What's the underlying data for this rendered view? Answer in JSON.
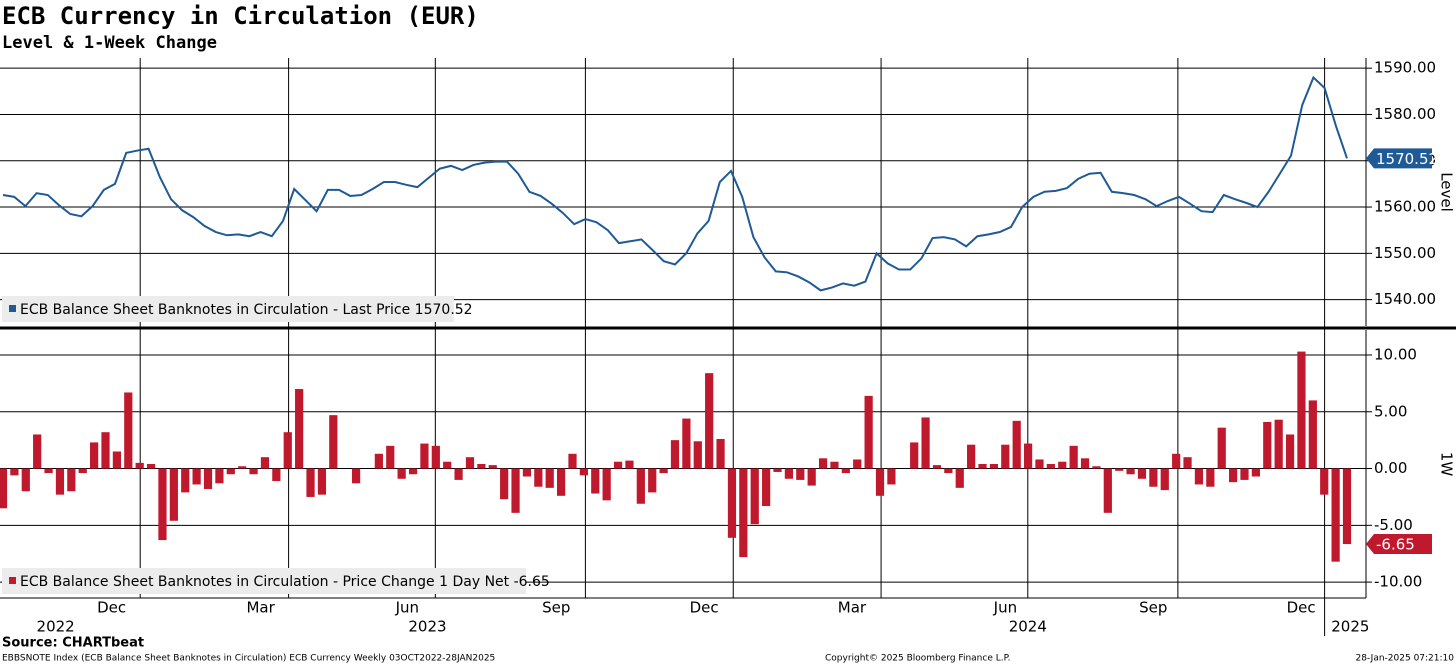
{
  "title": "ECB Currency in Circulation (EUR)",
  "subtitle": "Level & 1-Week Change",
  "chart_data": [
    {
      "type": "line",
      "axis_label": "Level",
      "color": "#1f5a96",
      "legend": "ECB Balance Sheet Banknotes in Circulation - Last Price 1570.52",
      "values": [
        1562.6,
        1562.2,
        1560.2,
        1563.0,
        1562.6,
        1560.4,
        1558.5,
        1558.0,
        1560.2,
        1563.7,
        1565.0,
        1571.7,
        1572.2,
        1572.6,
        1566.5,
        1561.7,
        1559.3,
        1557.8,
        1555.9,
        1554.6,
        1553.9,
        1554.1,
        1553.7,
        1554.6,
        1553.7,
        1557.0,
        1563.9,
        1561.5,
        1559.1,
        1563.7,
        1563.7,
        1562.4,
        1562.6,
        1563.9,
        1565.4,
        1565.4,
        1564.8,
        1564.3,
        1566.3,
        1568.3,
        1568.9,
        1568.0,
        1569.1,
        1569.6,
        1569.8,
        1569.8,
        1567.2,
        1563.3,
        1562.4,
        1560.7,
        1558.7,
        1556.3,
        1557.4,
        1556.7,
        1555.0,
        1552.2,
        1552.6,
        1553.0,
        1550.7,
        1548.3,
        1547.6,
        1550.0,
        1554.3,
        1557.0,
        1565.4,
        1567.8,
        1562.2,
        1553.5,
        1549.1,
        1546.1,
        1545.9,
        1545.0,
        1543.7,
        1542.0,
        1542.6,
        1543.5,
        1543.0,
        1543.9,
        1550.0,
        1547.8,
        1546.5,
        1546.5,
        1548.9,
        1553.3,
        1553.5,
        1553.0,
        1551.5,
        1553.7,
        1554.1,
        1554.6,
        1555.7,
        1560.0,
        1562.2,
        1563.3,
        1563.5,
        1564.1,
        1566.1,
        1567.2,
        1567.4,
        1563.3,
        1563.0,
        1562.6,
        1561.7,
        1560.2,
        1561.3,
        1562.2,
        1560.7,
        1559.1,
        1558.9,
        1562.6,
        1561.7,
        1560.9,
        1560.0,
        1563.3,
        1567.2,
        1571.1,
        1582.0,
        1588.0,
        1585.7,
        1577.6,
        1570.52
      ],
      "ylim": [
        1534.3,
        1592.2
      ],
      "yticks": [
        {
          "value": 1540,
          "label": "1540.00"
        },
        {
          "value": 1550,
          "label": "1550.00"
        },
        {
          "value": 1560,
          "label": "1560.00"
        },
        {
          "value": 1570,
          "label": "1570.00"
        },
        {
          "value": 1580,
          "label": "1580.00"
        },
        {
          "value": 1590,
          "label": "1590.00"
        }
      ],
      "grid": true
    },
    {
      "type": "bar",
      "axis_label": "1W",
      "color": "#c0182c",
      "legend": "ECB Balance Sheet Banknotes in Circulation - Price Change 1 Day Net -6.65",
      "values": [
        -3.5,
        -0.6,
        -2.0,
        3.0,
        -0.4,
        -2.3,
        -2.0,
        -0.4,
        2.3,
        3.2,
        1.5,
        6.7,
        0.5,
        0.4,
        -6.3,
        -4.6,
        -2.1,
        -1.4,
        -1.8,
        -1.3,
        -0.5,
        0.2,
        -0.5,
        1.0,
        -1.1,
        3.2,
        7.0,
        -2.5,
        -2.3,
        4.7,
        0.0,
        -1.3,
        0.0,
        1.3,
        2.0,
        -0.9,
        -0.5,
        2.2,
        2.0,
        0.6,
        -1.0,
        1.0,
        0.4,
        0.3,
        -2.7,
        -3.9,
        -0.7,
        -1.6,
        -1.7,
        -2.4,
        1.3,
        -0.6,
        -2.2,
        -2.8,
        0.6,
        0.7,
        -3.1,
        -2.1,
        -0.4,
        2.5,
        4.4,
        2.4,
        8.4,
        2.6,
        -6.1,
        -7.8,
        -4.9,
        -3.3,
        -0.3,
        -0.9,
        -1.0,
        -1.5,
        0.9,
        0.6,
        -0.4,
        0.8,
        6.4,
        -2.4,
        -1.4,
        0.0,
        2.3,
        4.5,
        0.3,
        -0.4,
        -1.7,
        2.1,
        0.4,
        0.4,
        2.1,
        4.2,
        2.2,
        0.8,
        0.4,
        0.6,
        2.0,
        0.9,
        0.2,
        -3.9,
        -0.2,
        -0.5,
        -0.9,
        -1.6,
        -1.9,
        1.3,
        1.0,
        -1.4,
        -1.6,
        3.6,
        -1.2,
        -1.0,
        -0.7,
        4.1,
        4.3,
        3.0,
        10.3,
        6.0,
        -2.3,
        -8.2,
        -6.65
      ],
      "ylim": [
        -11.4,
        12.2
      ],
      "yticks": [
        {
          "value": -10,
          "label": "-10.00"
        },
        {
          "value": -5,
          "label": "-5.00"
        },
        {
          "value": 0,
          "label": "0.00"
        },
        {
          "value": 5,
          "label": "5.00"
        },
        {
          "value": 10,
          "label": "10.00"
        }
      ],
      "grid": true,
      "xlim": [
        0,
        120
      ],
      "xgrid": [
        12.25,
        25.5,
        38.6,
        52,
        65.2,
        78.4,
        91.5,
        104.9,
        118
      ],
      "xticks": [
        {
          "value": 9.7,
          "label": "Dec"
        },
        {
          "value": 23,
          "label": "Mar"
        },
        {
          "value": 36.1,
          "label": "Jun"
        },
        {
          "value": 49.4,
          "label": "Sep"
        },
        {
          "value": 62.6,
          "label": "Dec"
        },
        {
          "value": 75.8,
          "label": "Mar"
        },
        {
          "value": 89.5,
          "label": "Jun"
        },
        {
          "value": 102.7,
          "label": "Sep"
        },
        {
          "value": 115.9,
          "label": "Dec"
        }
      ],
      "years": [
        {
          "value": 4.7,
          "label": "2022"
        },
        {
          "value": 37.9,
          "label": "2023"
        },
        {
          "value": 91.5,
          "label": "2024"
        },
        {
          "value": 120.3,
          "label": "2025"
        }
      ]
    }
  ],
  "footer": {
    "source": "Source: CHARTbeat",
    "ticker": "EBBSNOTE Index (ECB Balance Sheet Banknotes in Circulation) ECB Currency  Weekly 03OCT2022-28JAN2025",
    "copyright": "Copyright© 2025 Bloomberg Finance L.P.",
    "timestamp": "28-Jan-2025 07:21:10"
  }
}
